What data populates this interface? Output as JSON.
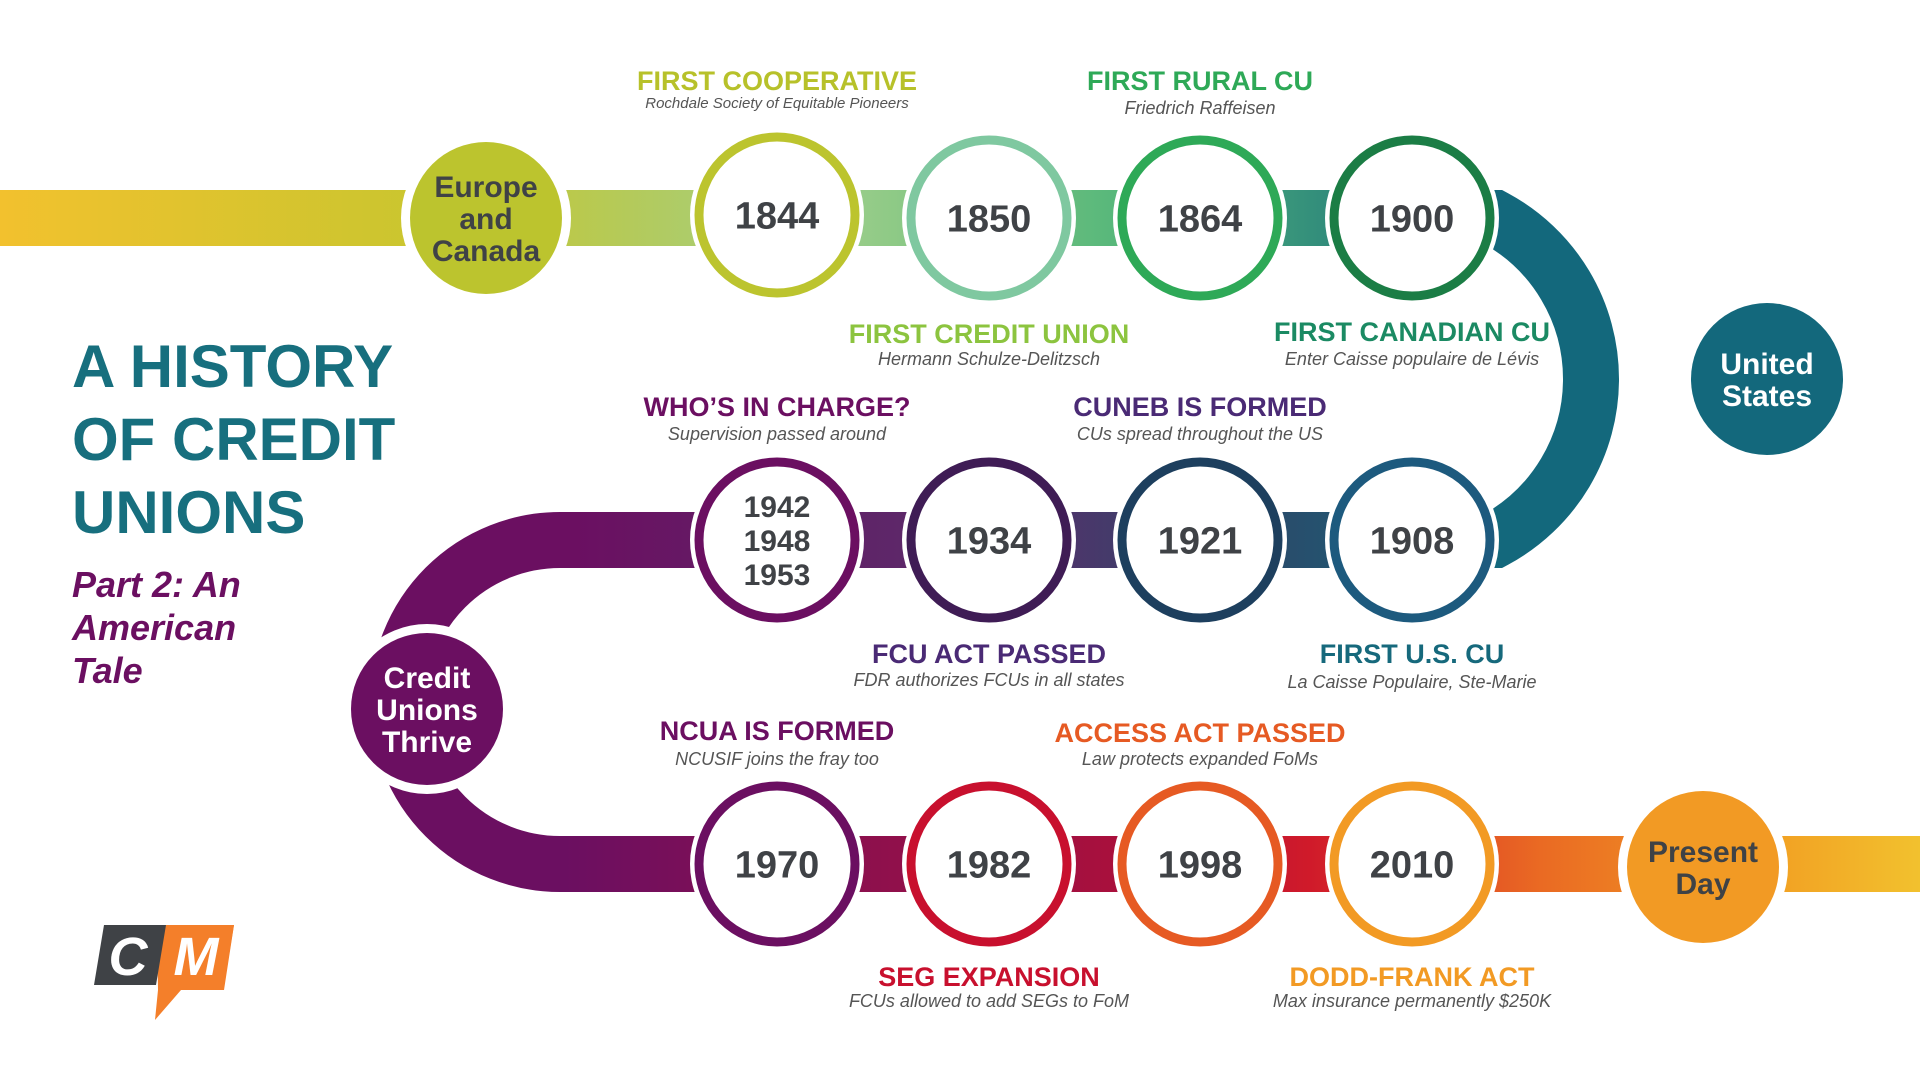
{
  "title_lines": [
    "A HISTORY",
    "OF CREDIT",
    "UNIONS"
  ],
  "subtitle_lines": [
    "Part 2: An",
    "American",
    "Tale"
  ],
  "title_color": "#176f7e",
  "subtitle_color": "#6b0f61",
  "logo": {
    "left": "C",
    "right": "M",
    "dark": "#3f4246",
    "accent": "#f47f2a"
  },
  "sections": [
    {
      "id": "europe",
      "lines": [
        "Europe",
        "and",
        "Canada"
      ],
      "color": "#bcc42e",
      "text_color": "#3f4246"
    },
    {
      "id": "us",
      "lines": [
        "United",
        "States"
      ],
      "color": "#13687c",
      "text_color": "#ffffff"
    },
    {
      "id": "thrive",
      "lines": [
        "Credit",
        "Unions",
        "Thrive"
      ],
      "color": "#6b0f61",
      "text_color": "#ffffff"
    },
    {
      "id": "present",
      "lines": [
        "Present",
        "Day"
      ],
      "color": "#f29a24",
      "text_color": "#3f4246"
    }
  ],
  "milestones": [
    {
      "id": "m1844",
      "year": [
        "1844"
      ],
      "title": "FIRST COOPERATIVE",
      "subtitle": "Rochdale Society of Equitable Pioneers",
      "color": "#bcc42e",
      "label_color": "#b7c12a",
      "position": "above"
    },
    {
      "id": "m1850",
      "year": [
        "1850"
      ],
      "title": "FIRST CREDIT UNION",
      "subtitle": "Hermann Schulze-Delitzsch",
      "color": "#7fc8a0",
      "label_color": "#8cc43f",
      "position": "below"
    },
    {
      "id": "m1864",
      "year": [
        "1864"
      ],
      "title": "FIRST RURAL CU",
      "subtitle": "Friedrich Raffeisen",
      "color": "#2ea957",
      "label_color": "#2ea957",
      "position": "above"
    },
    {
      "id": "m1900",
      "year": [
        "1900"
      ],
      "title": "FIRST CANADIAN CU",
      "subtitle": "Enter Caisse populaire de Lévis",
      "color": "#1b7d45",
      "label_color": "#1b8a63",
      "position": "below"
    },
    {
      "id": "m1908",
      "year": [
        "1908"
      ],
      "title": "FIRST U.S. CU",
      "subtitle": "La Caisse Populaire, Ste-Marie",
      "color": "#1d5a7e",
      "label_color": "#16697c",
      "position": "below"
    },
    {
      "id": "m1921",
      "year": [
        "1921"
      ],
      "title": "CUNEB IS FORMED",
      "subtitle": "CUs spread throughout the US",
      "color": "#1d3f5e",
      "label_color": "#4a2a75",
      "position": "above"
    },
    {
      "id": "m1934",
      "year": [
        "1934"
      ],
      "title": "FCU ACT PASSED",
      "subtitle": "FDR authorizes FCUs in all states",
      "color": "#3f1c55",
      "label_color": "#4a2a75",
      "position": "below"
    },
    {
      "id": "m1942",
      "year": [
        "1942",
        "1948",
        "1953"
      ],
      "title": "WHO’S IN CHARGE?",
      "subtitle": "Supervision passed around",
      "color": "#6b0f61",
      "label_color": "#6b0f61",
      "position": "above"
    },
    {
      "id": "m1970",
      "year": [
        "1970"
      ],
      "title": "NCUA IS FORMED",
      "subtitle": "NCUSIF joins the fray too",
      "color": "#6b0f61",
      "label_color": "#6b0f61",
      "position": "above"
    },
    {
      "id": "m1982",
      "year": [
        "1982"
      ],
      "title": "SEG EXPANSION",
      "subtitle": "FCUs allowed to add SEGs to FoM",
      "color": "#c8102e",
      "label_color": "#c8102e",
      "position": "below"
    },
    {
      "id": "m1998",
      "year": [
        "1998"
      ],
      "title": "ACCESS ACT PASSED",
      "subtitle": "Law protects expanded FoMs",
      "color": "#e65a23",
      "label_color": "#e65a23",
      "position": "above"
    },
    {
      "id": "m2010",
      "year": [
        "2010"
      ],
      "title": "DODD-FRANK ACT",
      "subtitle": "Max insurance permanently $250K",
      "color": "#f29a24",
      "label_color": "#f29a24",
      "position": "below"
    }
  ]
}
